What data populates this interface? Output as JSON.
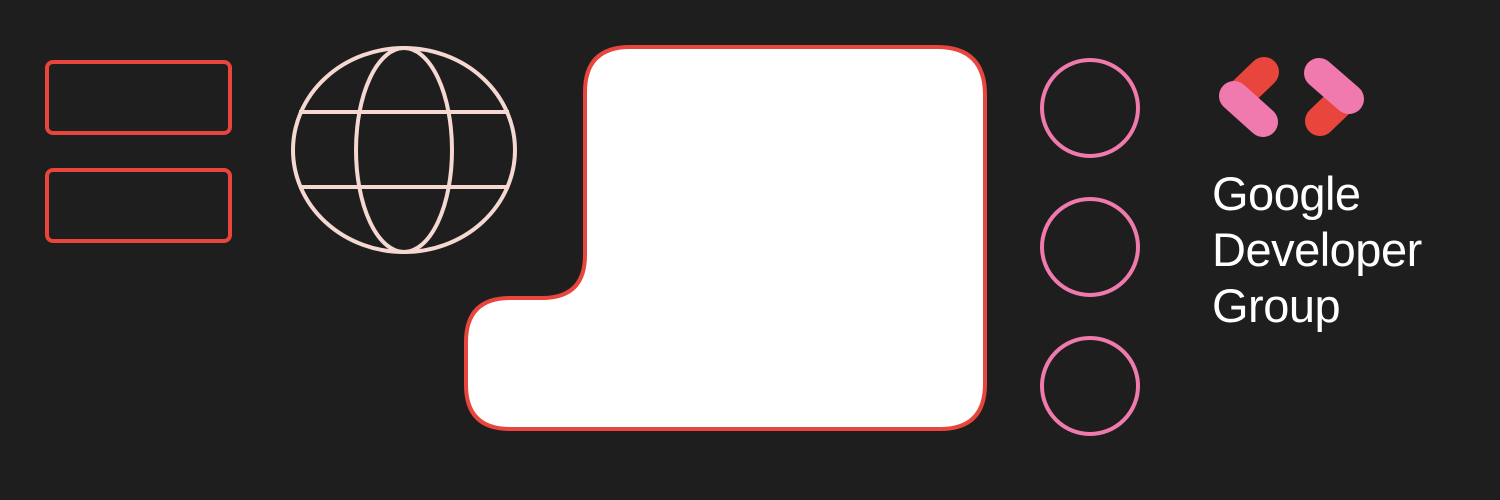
{
  "brand": {
    "line1": "Google",
    "line2": "Developer",
    "line3": "Group"
  },
  "colors": {
    "background": "#1e1e1e",
    "red": "#e8453c",
    "pink": "#f07aad",
    "globe": "#f6d8d2",
    "white": "#ffffff"
  },
  "icons": {
    "left_rectangles": "two-outlined-rectangles",
    "globe": "globe-icon",
    "circles": "three-outlined-circles",
    "logo": "google-developers-chevron-logo"
  }
}
